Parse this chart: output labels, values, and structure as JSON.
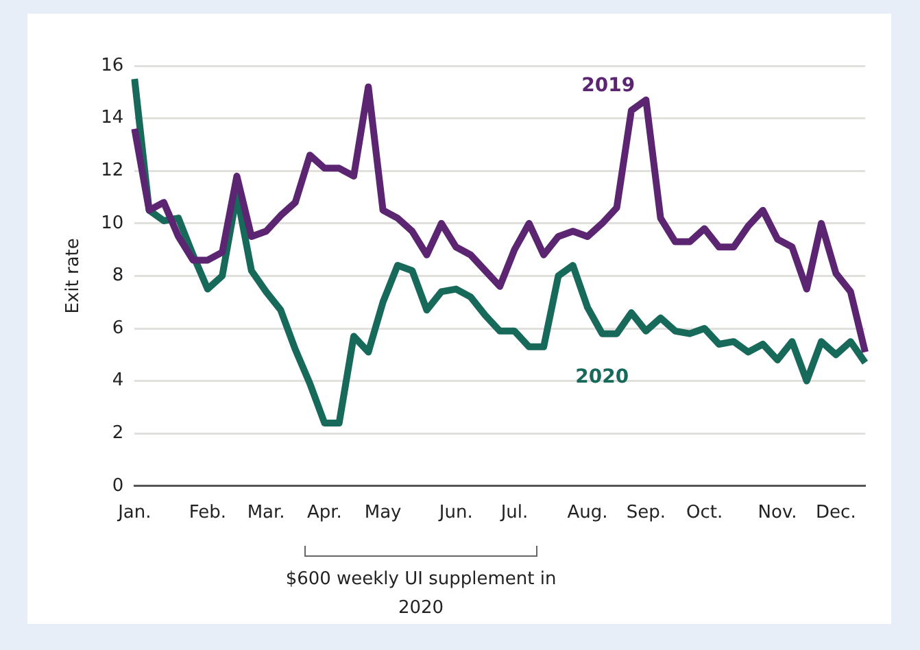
{
  "chart_data": {
    "type": "line",
    "ylabel": "Exit rate",
    "categories": [
      "Jan.",
      null,
      null,
      null,
      null,
      "Feb.",
      null,
      null,
      null,
      "Mar.",
      null,
      null,
      null,
      "Apr.",
      null,
      null,
      null,
      "May",
      null,
      null,
      null,
      null,
      "Jun.",
      null,
      null,
      null,
      "Jul.",
      null,
      null,
      null,
      null,
      "Aug.",
      null,
      null,
      null,
      "Sep.",
      null,
      null,
      null,
      "Oct.",
      null,
      null,
      null,
      null,
      "Nov.",
      null,
      null,
      null,
      "Dec.",
      null,
      null
    ],
    "ylim": [
      0,
      16
    ],
    "yticks": [
      0,
      2,
      4,
      6,
      8,
      10,
      12,
      14,
      16
    ],
    "grid": "y",
    "legend": false,
    "marker": "none",
    "line_style": "solid",
    "series": [
      {
        "name": "2019",
        "color": "#5c2572",
        "values": [
          13.6,
          10.5,
          10.8,
          9.5,
          8.6,
          8.6,
          8.9,
          11.8,
          9.5,
          9.7,
          10.3,
          10.8,
          12.6,
          12.1,
          12.1,
          11.8,
          15.2,
          10.5,
          10.2,
          9.7,
          8.8,
          10.0,
          9.1,
          8.8,
          8.2,
          7.6,
          9.0,
          10.0,
          8.8,
          9.5,
          9.7,
          9.5,
          10.0,
          10.6,
          14.3,
          14.7,
          10.2,
          9.3,
          9.3,
          9.8,
          9.1,
          9.1,
          9.9,
          10.5,
          9.4,
          9.1,
          7.5,
          10.0,
          8.1,
          7.4,
          5.1
        ]
      },
      {
        "name": "2020",
        "color": "#17695a",
        "values": [
          15.5,
          10.5,
          10.1,
          10.2,
          8.8,
          7.5,
          8.0,
          11.1,
          8.2,
          7.4,
          6.7,
          5.2,
          3.9,
          2.4,
          2.4,
          5.7,
          5.1,
          7.0,
          8.4,
          8.2,
          6.7,
          7.4,
          7.5,
          7.2,
          6.5,
          5.9,
          5.9,
          5.3,
          5.3,
          8.0,
          8.4,
          6.8,
          5.8,
          5.8,
          6.6,
          5.9,
          6.4,
          5.9,
          5.8,
          6.0,
          5.4,
          5.5,
          5.1,
          5.4,
          4.8,
          5.5,
          4.0,
          5.5,
          5.0,
          5.5,
          4.7
        ]
      }
    ],
    "annotations": [
      "$600 weekly UI supplement in 2020"
    ]
  }
}
